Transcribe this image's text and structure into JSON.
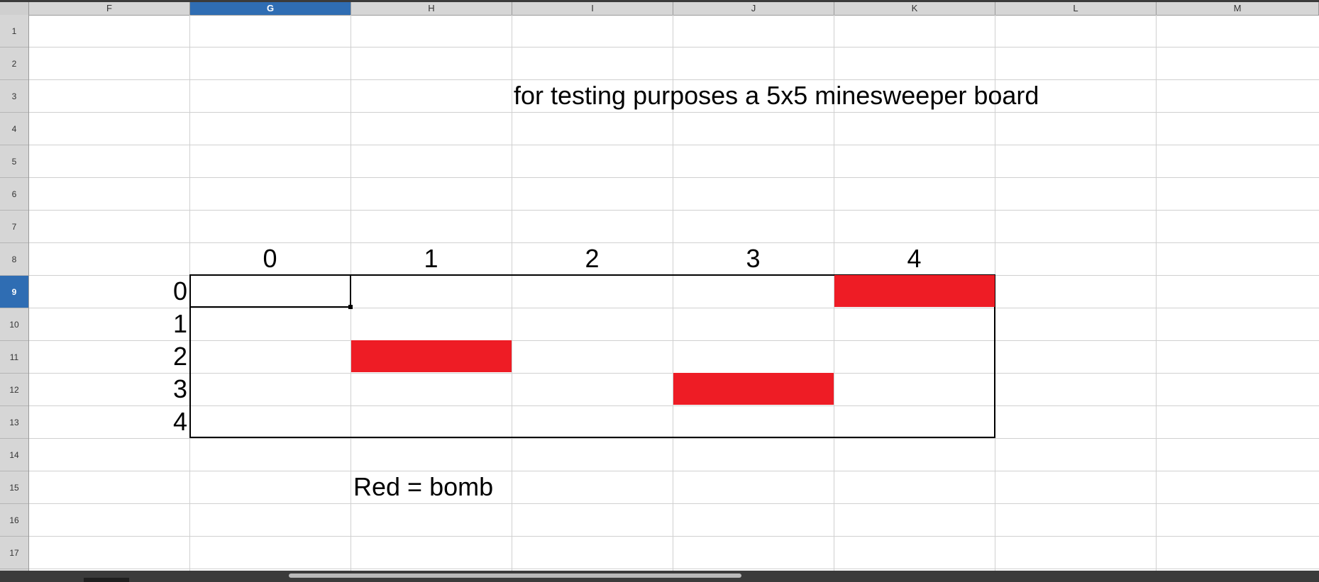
{
  "app": {
    "name": "Spreadsheet"
  },
  "columns": [
    {
      "label": "F"
    },
    {
      "label": "G"
    },
    {
      "label": "H"
    },
    {
      "label": "I"
    },
    {
      "label": "J"
    },
    {
      "label": "K"
    },
    {
      "label": "L"
    },
    {
      "label": "M"
    }
  ],
  "selected_column": "G",
  "rows": [
    {
      "label": "1"
    },
    {
      "label": "2"
    },
    {
      "label": "3"
    },
    {
      "label": "4"
    },
    {
      "label": "5"
    },
    {
      "label": "6"
    },
    {
      "label": "7"
    },
    {
      "label": "8"
    },
    {
      "label": "9"
    },
    {
      "label": "10"
    },
    {
      "label": "11"
    },
    {
      "label": "12"
    },
    {
      "label": "13"
    },
    {
      "label": "14"
    },
    {
      "label": "15"
    },
    {
      "label": "16"
    },
    {
      "label": "17"
    }
  ],
  "selected_row": "9",
  "active_cell": "G9",
  "title_text": "for testing purposes a 5x5 minesweeper board",
  "board": {
    "column_labels": [
      "0",
      "1",
      "2",
      "3",
      "4"
    ],
    "row_labels": [
      "0",
      "1",
      "2",
      "3",
      "4"
    ],
    "bombs": [
      {
        "row": 0,
        "col": 4
      },
      {
        "row": 2,
        "col": 1
      },
      {
        "row": 3,
        "col": 3
      }
    ],
    "bomb_color": "#ee1c25"
  },
  "legend_text": "Red = bomb"
}
